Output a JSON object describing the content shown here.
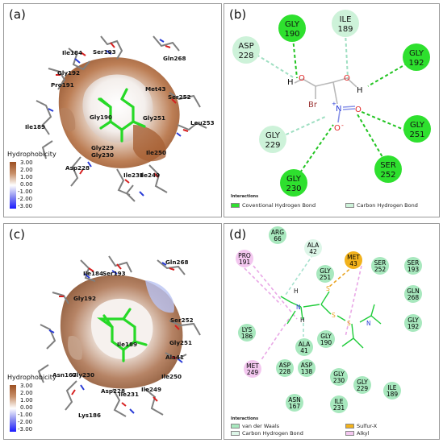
{
  "panel_a": {
    "label": "(a)",
    "residue_labels": [
      "Gln268",
      "Ile184",
      "Ser193",
      "Gly192",
      "Pro191",
      "Ser252",
      "Met43",
      "Gly190",
      "Ile189",
      "Gly251",
      "Leu253",
      "Gly229",
      "Gly230",
      "Ile250",
      "Asp228",
      "Ile231",
      "Ile249"
    ],
    "legend_title": "Hydrophobicity",
    "scale_ticks": [
      "3.00",
      "2.00",
      "1.00",
      "0.00",
      "-1.00",
      "-2.00",
      "-3.00"
    ]
  },
  "panel_b": {
    "label": "(b)",
    "residues": [
      {
        "name": "GLY",
        "num": "190",
        "type": "hbond"
      },
      {
        "name": "ILE",
        "num": "189",
        "type": "chb"
      },
      {
        "name": "ASP",
        "num": "228",
        "type": "chb"
      },
      {
        "name": "GLY",
        "num": "192",
        "type": "hbond"
      },
      {
        "name": "GLY",
        "num": "251",
        "type": "hbond"
      },
      {
        "name": "GLY",
        "num": "229",
        "type": "chb"
      },
      {
        "name": "SER",
        "num": "252",
        "type": "hbond"
      },
      {
        "name": "GLY",
        "num": "230",
        "type": "hbond"
      }
    ],
    "atoms": [
      "H",
      "O",
      "O",
      "H",
      "Br",
      "N",
      "O",
      "O"
    ],
    "charges": [
      "+",
      "-"
    ],
    "legend_title": "Interactions",
    "legend": [
      "Coventional Hydrogen Bond",
      "Carbon Hydrogen Bond"
    ],
    "colors": {
      "hbond": "#2ee02e",
      "chb": "#cdf2d9",
      "hbond_line": "#22c422",
      "chb_line": "#9fdfc2"
    }
  },
  "panel_c": {
    "label": "(c)",
    "residue_labels": [
      "Gln268",
      "Ile184",
      "Ser193",
      "Gly192",
      "Ser252",
      "Gly251",
      "Ala41",
      "Ile250",
      "Asn167",
      "Gly230",
      "Ile189",
      "Asp228",
      "Ile231",
      "Ile249",
      "Lys186"
    ],
    "legend_title": "Hydrophobicity",
    "scale_ticks": [
      "3.00",
      "2.00",
      "1.00",
      "0.00",
      "-1.00",
      "-2.00",
      "-3.00"
    ]
  },
  "panel_d": {
    "label": "(d)",
    "residues": [
      {
        "name": "ARG",
        "num": "66",
        "type": "vdw"
      },
      {
        "name": "ALA",
        "num": "42",
        "type": "vdw"
      },
      {
        "name": "MET",
        "num": "43",
        "type": "sulfur"
      },
      {
        "name": "PRO",
        "num": "191",
        "type": "alkyl"
      },
      {
        "name": "GLY",
        "num": "251",
        "type": "vdw"
      },
      {
        "name": "SER",
        "num": "252",
        "type": "vdw"
      },
      {
        "name": "SER",
        "num": "193",
        "type": "vdw"
      },
      {
        "name": "GLN",
        "num": "268",
        "type": "vdw"
      },
      {
        "name": "GLY",
        "num": "192",
        "type": "vdw"
      },
      {
        "name": "LYS",
        "num": "186",
        "type": "vdw"
      },
      {
        "name": "GLY",
        "num": "190",
        "type": "vdw"
      },
      {
        "name": "ALA",
        "num": "41",
        "type": "vdw"
      },
      {
        "name": "MET",
        "num": "249",
        "type": "alkyl"
      },
      {
        "name": "ASP",
        "num": "228",
        "type": "vdw"
      },
      {
        "name": "ASP",
        "num": "138",
        "type": "vdw"
      },
      {
        "name": "GLY",
        "num": "230",
        "type": "vdw"
      },
      {
        "name": "GLY",
        "num": "229",
        "type": "vdw"
      },
      {
        "name": "ILE",
        "num": "189",
        "type": "vdw"
      },
      {
        "name": "ASN",
        "num": "167",
        "type": "vdw"
      },
      {
        "name": "ILE",
        "num": "231",
        "type": "vdw"
      }
    ],
    "atoms": [
      "H",
      "H",
      "S",
      "S",
      "S",
      "N",
      "N"
    ],
    "legend_title": "Interactions",
    "legend": [
      "van der Waals",
      "Sulfur-X",
      "Carbon Hydrogen Bond",
      "Alkyl"
    ],
    "colors": {
      "vdw": "#a8e8be",
      "sulfur": "#f2b21c",
      "alkyl": "#f3c7ef",
      "chb": "#ddf6e8",
      "bond": "#1fcc3a",
      "sulfur_line": "#e9a422",
      "alkyl_line": "#e9a7e6",
      "chb_line": "#a6e2ce"
    }
  }
}
